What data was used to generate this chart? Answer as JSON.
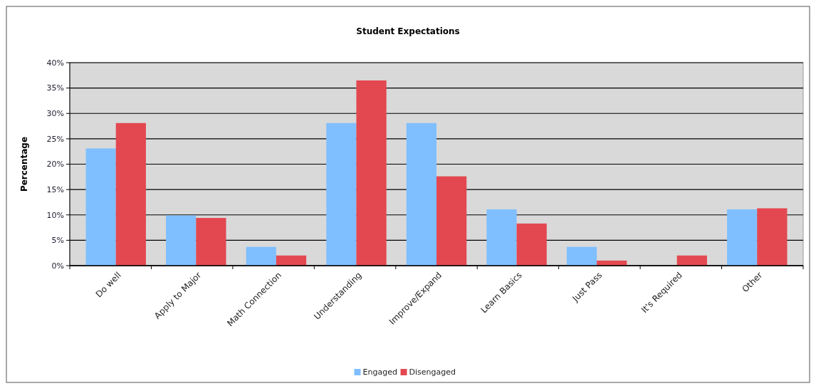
{
  "chart_data": {
    "type": "bar",
    "title": "Student Expectations",
    "ylabel": "Percentage",
    "categories": [
      "Do well",
      "Apply to Major",
      "Math Connection",
      "Understanding",
      "Improve/Expand",
      "Learn Basics",
      "Just Pass",
      "It's Required",
      "Other"
    ],
    "series": [
      {
        "name": "Engaged",
        "color": "#80bfff",
        "values": [
          23.1,
          9.9,
          3.7,
          28.1,
          28.1,
          11.1,
          3.7,
          0,
          11.1
        ]
      },
      {
        "name": "Disengaged",
        "color": "#e34850",
        "values": [
          28.1,
          9.4,
          2.0,
          36.5,
          17.6,
          8.3,
          1.0,
          2.0,
          11.3
        ]
      }
    ],
    "ylim": [
      0,
      40
    ],
    "yticks": [
      {
        "value": 0,
        "label": "0%"
      },
      {
        "value": 5,
        "label": "5%"
      },
      {
        "value": 10,
        "label": "10%"
      },
      {
        "value": 15,
        "label": "15%"
      },
      {
        "value": 20,
        "label": "20%"
      },
      {
        "value": 25,
        "label": "25%"
      },
      {
        "value": 30,
        "label": "30%"
      },
      {
        "value": 35,
        "label": "35%"
      },
      {
        "value": 40,
        "label": "40%"
      }
    ],
    "grid": "y",
    "legend": "bottom"
  }
}
